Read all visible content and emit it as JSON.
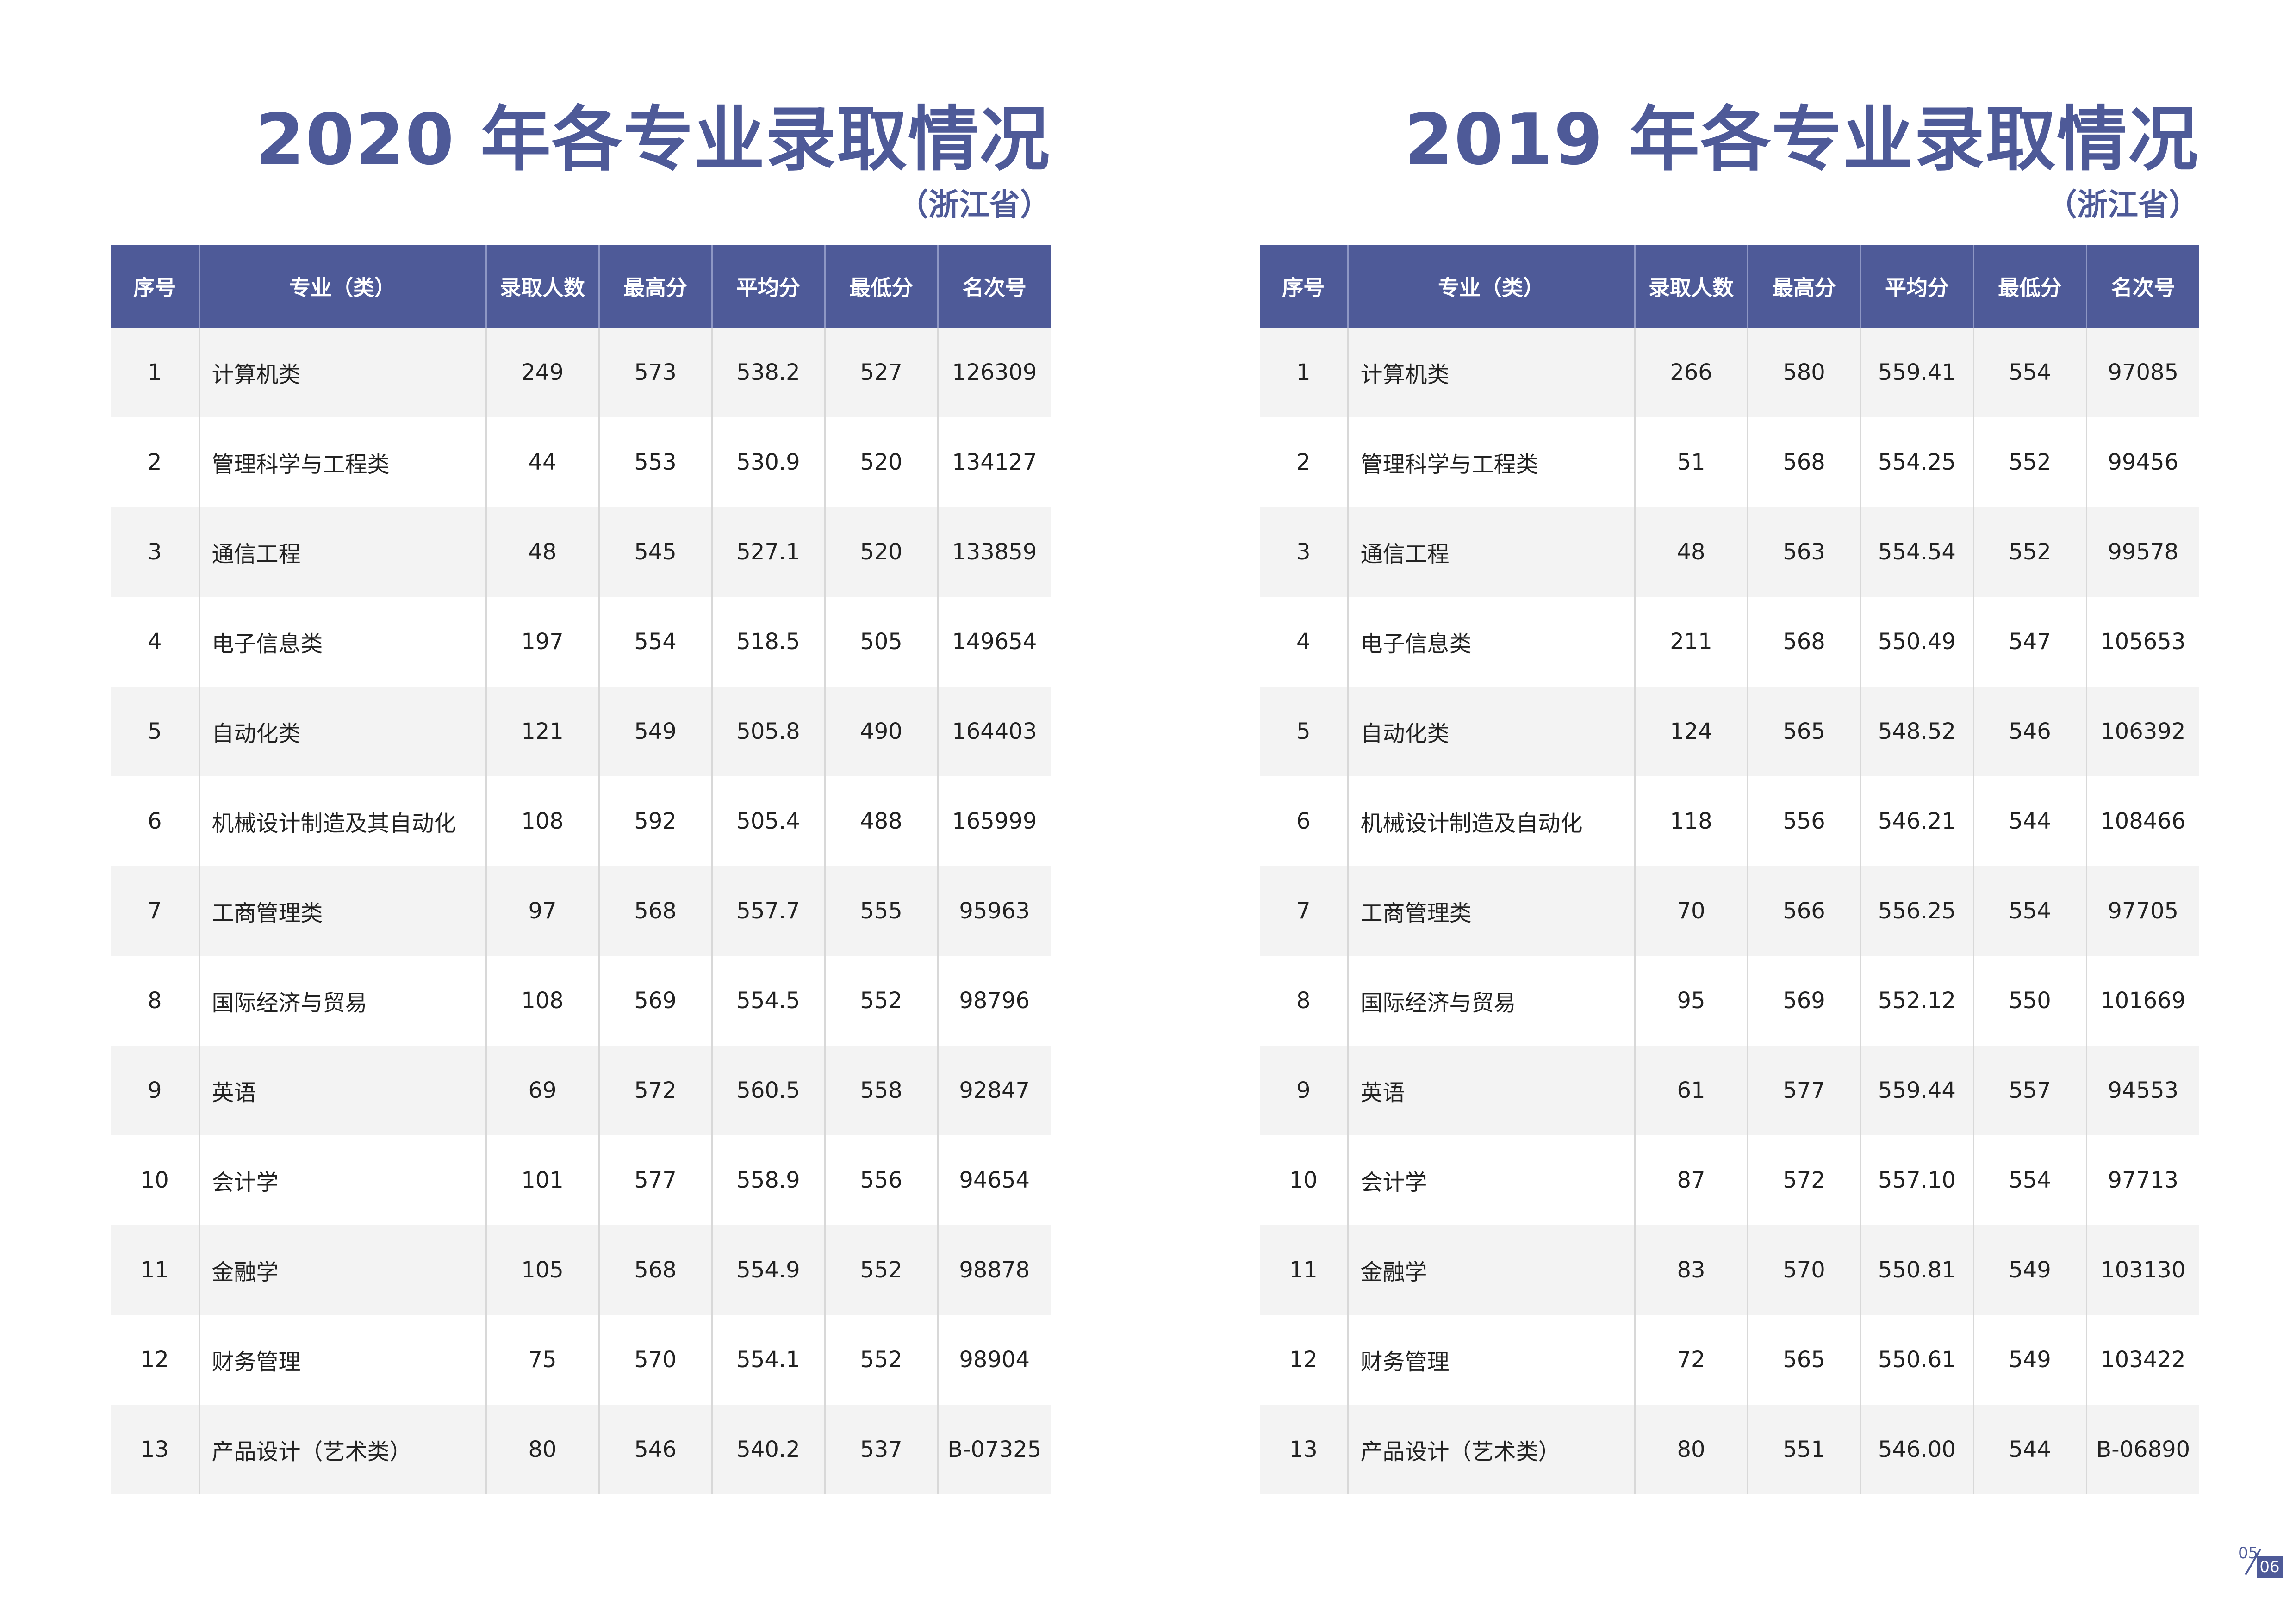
{
  "colors": {
    "accent": "#4e5a98",
    "row_alt": "#f3f3f3",
    "grid": "#d8d8d8"
  },
  "columns": [
    "序号",
    "专业（类）",
    "录取人数",
    "最高分",
    "平均分",
    "最低分",
    "名次号"
  ],
  "left": {
    "title": "2020 年各专业录取情况",
    "subtitle": "（浙江省）",
    "rows": [
      [
        "1",
        "计算机类",
        "249",
        "573",
        "538.2",
        "527",
        "126309"
      ],
      [
        "2",
        "管理科学与工程类",
        "44",
        "553",
        "530.9",
        "520",
        "134127"
      ],
      [
        "3",
        "通信工程",
        "48",
        "545",
        "527.1",
        "520",
        "133859"
      ],
      [
        "4",
        "电子信息类",
        "197",
        "554",
        "518.5",
        "505",
        "149654"
      ],
      [
        "5",
        "自动化类",
        "121",
        "549",
        "505.8",
        "490",
        "164403"
      ],
      [
        "6",
        "机械设计制造及其自动化",
        "108",
        "592",
        "505.4",
        "488",
        "165999"
      ],
      [
        "7",
        "工商管理类",
        "97",
        "568",
        "557.7",
        "555",
        "95963"
      ],
      [
        "8",
        "国际经济与贸易",
        "108",
        "569",
        "554.5",
        "552",
        "98796"
      ],
      [
        "9",
        "英语",
        "69",
        "572",
        "560.5",
        "558",
        "92847"
      ],
      [
        "10",
        "会计学",
        "101",
        "577",
        "558.9",
        "556",
        "94654"
      ],
      [
        "11",
        "金融学",
        "105",
        "568",
        "554.9",
        "552",
        "98878"
      ],
      [
        "12",
        "财务管理",
        "75",
        "570",
        "554.1",
        "552",
        "98904"
      ],
      [
        "13",
        "产品设计（艺术类）",
        "80",
        "546",
        "540.2",
        "537",
        "B-07325"
      ]
    ]
  },
  "right": {
    "title": "2019 年各专业录取情况",
    "subtitle": "（浙江省）",
    "rows": [
      [
        "1",
        "计算机类",
        "266",
        "580",
        "559.41",
        "554",
        "97085"
      ],
      [
        "2",
        "管理科学与工程类",
        "51",
        "568",
        "554.25",
        "552",
        "99456"
      ],
      [
        "3",
        "通信工程",
        "48",
        "563",
        "554.54",
        "552",
        "99578"
      ],
      [
        "4",
        "电子信息类",
        "211",
        "568",
        "550.49",
        "547",
        "105653"
      ],
      [
        "5",
        "自动化类",
        "124",
        "565",
        "548.52",
        "546",
        "106392"
      ],
      [
        "6",
        "机械设计制造及自动化",
        "118",
        "556",
        "546.21",
        "544",
        "108466"
      ],
      [
        "7",
        "工商管理类",
        "70",
        "566",
        "556.25",
        "554",
        "97705"
      ],
      [
        "8",
        "国际经济与贸易",
        "95",
        "569",
        "552.12",
        "550",
        "101669"
      ],
      [
        "9",
        "英语",
        "61",
        "577",
        "559.44",
        "557",
        "94553"
      ],
      [
        "10",
        "会计学",
        "87",
        "572",
        "557.10",
        "554",
        "97713"
      ],
      [
        "11",
        "金融学",
        "83",
        "570",
        "550.81",
        "549",
        "103130"
      ],
      [
        "12",
        "财务管理",
        "72",
        "565",
        "550.61",
        "549",
        "103422"
      ],
      [
        "13",
        "产品设计（艺术类）",
        "80",
        "551",
        "546.00",
        "544",
        "B-06890"
      ]
    ]
  },
  "pager": {
    "left_page": "05",
    "right_page": "06"
  }
}
